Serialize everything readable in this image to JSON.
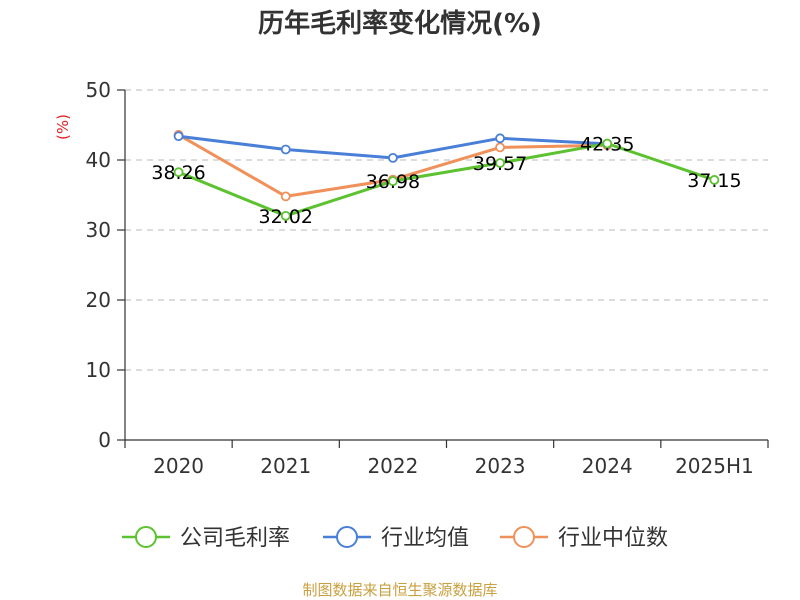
{
  "chart_data": {
    "type": "line",
    "title": "历年毛利率变化情况(%)",
    "unit_label": "(%)",
    "categories": [
      "2020",
      "2021",
      "2022",
      "2023",
      "2024",
      "2025H1"
    ],
    "ylim": [
      0,
      50
    ],
    "y_ticks": [
      "0",
      "10",
      "20",
      "30",
      "40",
      "50"
    ],
    "grid": true,
    "legend_position": "bottom",
    "series": [
      {
        "name": "公司毛利率",
        "color": "#5cc230",
        "values": [
          38.26,
          32.02,
          36.98,
          39.57,
          42.35,
          37.15
        ],
        "labels": [
          "38.26",
          "32.02",
          "36.98",
          "39.57",
          "42.35",
          "37.15"
        ]
      },
      {
        "name": "行业均值",
        "color": "#4a7fd8",
        "values": [
          43.4,
          41.5,
          40.3,
          43.1,
          42.3,
          null
        ]
      },
      {
        "name": "行业中位数",
        "color": "#f0905a",
        "values": [
          43.6,
          34.8,
          37.2,
          41.8,
          42.1,
          null
        ]
      }
    ]
  },
  "footer": {
    "source": "制图数据来自恒生聚源数据库"
  }
}
